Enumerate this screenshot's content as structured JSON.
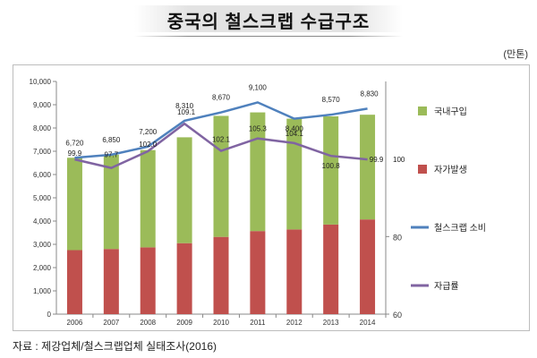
{
  "title": "중국의 철스크랩 수급구조",
  "unit": "(만톤)",
  "source": "자료 : 제강업체/철스크랩업체 실태조사(2016)",
  "colors": {
    "domestic": "#9bbb59",
    "self": "#c0504d",
    "consumption": "#4f81bd",
    "ratio": "#8064a2"
  },
  "chart_data": {
    "type": "bar",
    "categories": [
      "2006",
      "2007",
      "2008",
      "2009",
      "2010",
      "2011",
      "2012",
      "2013",
      "2014"
    ],
    "stacked": true,
    "series": [
      {
        "name": "자가발생",
        "type": "bar",
        "axis": "left",
        "values": [
          2750,
          2800,
          2870,
          3050,
          3320,
          3570,
          3640,
          3850,
          4070
        ]
      },
      {
        "name": "국내구입",
        "type": "bar",
        "axis": "left",
        "values": [
          3970,
          4050,
          4180,
          4550,
          5200,
          5100,
          4760,
          4650,
          4500
        ]
      },
      {
        "name": "철스크랩 소비",
        "type": "line",
        "axis": "left",
        "values": [
          6720,
          6850,
          7200,
          8310,
          8670,
          9100,
          8400,
          8570,
          8830
        ]
      },
      {
        "name": "자급률",
        "type": "line",
        "axis": "right",
        "values": [
          99.9,
          97.7,
          102.0,
          109.1,
          102.1,
          105.3,
          104.1,
          100.8,
          99.9
        ]
      }
    ],
    "labels": {
      "consumption": [
        "6,720",
        "6,850",
        "7,200",
        "8,310",
        "8,670",
        "9,100",
        "8,400",
        "8,570",
        "8,830"
      ],
      "ratio": [
        "99.9",
        "97.7",
        "102.0",
        "109.1",
        "102.1",
        "105.3",
        "104.1",
        "100.8",
        "99.9"
      ],
      "right_extra": "100"
    },
    "y_left": {
      "min": 0,
      "max": 10000,
      "ticks": [
        "0",
        "1,000",
        "2,000",
        "3,000",
        "4,000",
        "5,000",
        "6,000",
        "7,000",
        "8,000",
        "9,000",
        "10,000"
      ]
    },
    "y_right": {
      "min": 60,
      "max": 120,
      "ticks": [
        "60",
        "80"
      ]
    },
    "legend": [
      {
        "label": "국내구입",
        "kind": "box",
        "color": "#9bbb59"
      },
      {
        "label": "자가발생",
        "kind": "box",
        "color": "#c0504d"
      },
      {
        "label": "철스크랩 소비",
        "kind": "line",
        "color": "#4f81bd"
      },
      {
        "label": "자급률",
        "kind": "line",
        "color": "#8064a2"
      }
    ],
    "legend_position": "right",
    "grid": false
  }
}
